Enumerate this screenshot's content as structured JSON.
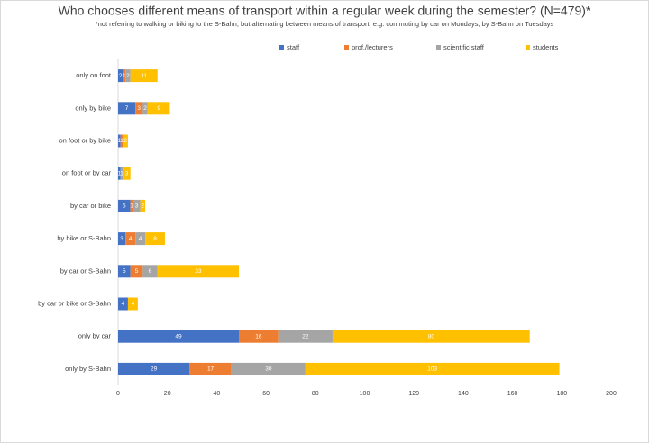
{
  "chart_data": {
    "type": "stacked-bar-horizontal",
    "title": "Who chooses different means of transport within a regular week during the semester? (N=479)*",
    "subtitle": "*not referring to walking or biking to the S-Bahn, but alternating between means of transport, e.g. commuting by car on Mondays, by S-Bahn on Tuesdays",
    "categories": [
      "only on foot",
      "only by bike",
      "on foot or by bike",
      "on foot or by car",
      "by car or bike",
      "by bike or S-Bahn",
      "by car or S-Bahn",
      "by car or bike or S-Bahn",
      "only by car",
      "only by S-Bahn"
    ],
    "series": [
      {
        "name": "staff",
        "color": "#4472c4",
        "values": [
          2,
          7,
          1,
          1,
          5,
          3,
          5,
          4,
          49,
          29
        ]
      },
      {
        "name": "prof./lecturers",
        "color": "#ed7d31",
        "values": [
          1,
          3,
          1,
          null,
          1,
          4,
          5,
          null,
          16,
          17
        ]
      },
      {
        "name": "scientific staff",
        "color": "#a5a5a5",
        "values": [
          2,
          2,
          null,
          1,
          3,
          4,
          6,
          null,
          22,
          30
        ]
      },
      {
        "name": "students",
        "color": "#ffc000",
        "values": [
          11,
          9,
          2,
          3,
          2,
          8,
          33,
          4,
          80,
          103
        ]
      }
    ],
    "xlim": [
      0,
      200
    ],
    "xticks": [
      0,
      20,
      40,
      60,
      80,
      100,
      120,
      140,
      160,
      180,
      200
    ],
    "grid": false,
    "legend": "top"
  }
}
